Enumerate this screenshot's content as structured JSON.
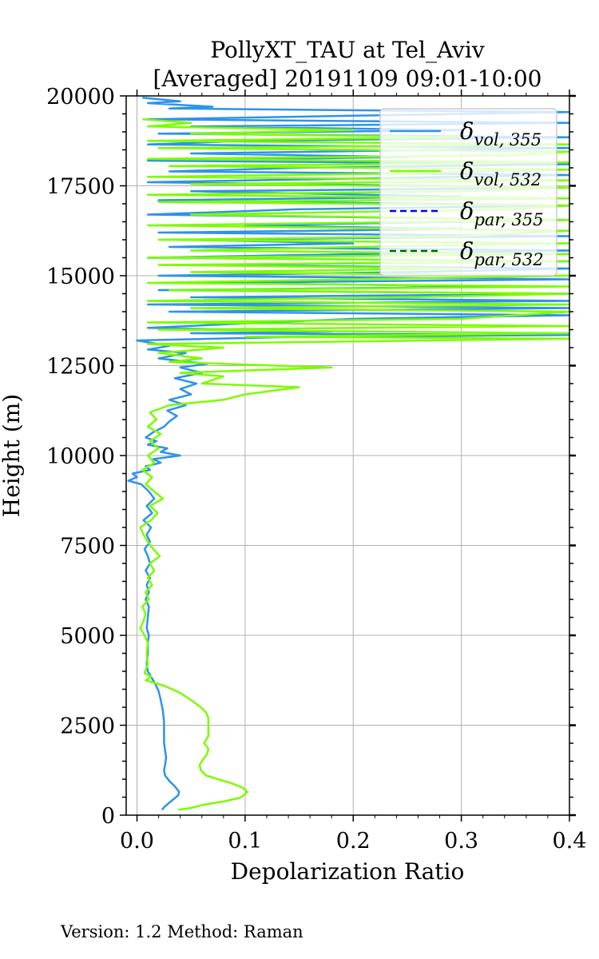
{
  "title_line1": "PollyXT_TAU at Tel_Aviv",
  "title_line2": "[Averaged] 20191109 09:01-10:00",
  "footer": "Version: 1.2  Method: Raman",
  "chart_data": {
    "type": "line",
    "xlabel": "Depolarization Ratio",
    "ylabel": "Height (m)",
    "xlim": [
      -0.01,
      0.4
    ],
    "ylim": [
      0,
      20000
    ],
    "xticks": [
      0.0,
      0.1,
      0.2,
      0.3,
      0.4
    ],
    "xtick_labels": [
      "0.0",
      "0.1",
      "0.2",
      "0.3",
      "0.4"
    ],
    "yticks": [
      0,
      2500,
      5000,
      7500,
      10000,
      12500,
      15000,
      17500,
      20000
    ],
    "ytick_labels": [
      "0",
      "2500",
      "5000",
      "7500",
      "10000",
      "12500",
      "15000",
      "17500",
      "20000"
    ],
    "grid": true,
    "legend_position": "top-right",
    "series": [
      {
        "name": "δvol,355",
        "label_main": "δ",
        "label_sub": "vol, 355",
        "color": "#2e93ea",
        "dash": "solid",
        "points": [
          [
            0.023,
            150
          ],
          [
            0.026,
            250
          ],
          [
            0.032,
            400
          ],
          [
            0.038,
            550
          ],
          [
            0.039,
            650
          ],
          [
            0.035,
            800
          ],
          [
            0.03,
            950
          ],
          [
            0.026,
            1100
          ],
          [
            0.025,
            1250
          ],
          [
            0.026,
            1400
          ],
          [
            0.027,
            1600
          ],
          [
            0.026,
            1800
          ],
          [
            0.025,
            2000
          ],
          [
            0.025,
            2300
          ],
          [
            0.025,
            2600
          ],
          [
            0.024,
            2900
          ],
          [
            0.022,
            3200
          ],
          [
            0.02,
            3450
          ],
          [
            0.017,
            3650
          ],
          [
            0.013,
            3850
          ],
          [
            0.01,
            4000
          ],
          [
            0.009,
            4200
          ],
          [
            0.01,
            4500
          ],
          [
            0.01,
            4800
          ],
          [
            0.011,
            5000
          ],
          [
            0.009,
            5200
          ],
          [
            0.01,
            5500
          ],
          [
            0.011,
            5800
          ],
          [
            0.008,
            6000
          ],
          [
            0.011,
            6200
          ],
          [
            0.009,
            6400
          ],
          [
            0.012,
            6600
          ],
          [
            0.008,
            6800
          ],
          [
            0.012,
            7000
          ],
          [
            0.01,
            7200
          ],
          [
            0.007,
            7400
          ],
          [
            0.012,
            7600
          ],
          [
            0.009,
            7800
          ],
          [
            0.013,
            8000
          ],
          [
            0.006,
            8200
          ],
          [
            0.014,
            8400
          ],
          [
            0.009,
            8600
          ],
          [
            0.016,
            8800
          ],
          [
            0.011,
            9000
          ],
          [
            0.004,
            9200
          ],
          [
            -0.008,
            9300
          ],
          [
            0.0,
            9400
          ],
          [
            -0.004,
            9500
          ],
          [
            0.012,
            9600
          ],
          [
            0.008,
            9700
          ],
          [
            0.022,
            9800
          ],
          [
            0.015,
            9900
          ],
          [
            0.04,
            10000
          ],
          [
            0.022,
            10100
          ],
          [
            0.028,
            10200
          ],
          [
            0.01,
            10300
          ],
          [
            0.018,
            10400
          ],
          [
            0.008,
            10500
          ],
          [
            0.015,
            10650
          ],
          [
            0.025,
            10800
          ],
          [
            0.03,
            10950
          ],
          [
            0.037,
            11100
          ],
          [
            0.028,
            11250
          ],
          [
            0.045,
            11400
          ],
          [
            0.03,
            11550
          ],
          [
            0.05,
            11700
          ],
          [
            0.04,
            11850
          ],
          [
            0.055,
            12000
          ],
          [
            0.035,
            12150
          ],
          [
            0.06,
            12300
          ],
          [
            0.04,
            12450
          ],
          [
            0.065,
            12550
          ],
          [
            0.02,
            12700
          ],
          [
            0.045,
            12850
          ],
          [
            0.01,
            12950
          ],
          [
            0.03,
            13050
          ],
          [
            0.0,
            13200
          ],
          [
            0.15,
            13300
          ],
          [
            0.4,
            13350
          ],
          [
            0.05,
            13400
          ],
          [
            0.18,
            13450
          ],
          [
            0.01,
            13550
          ],
          [
            0.12,
            13700
          ],
          [
            0.2,
            13800
          ],
          [
            0.4,
            13900
          ],
          [
            0.03,
            14000
          ],
          [
            0.4,
            14100
          ],
          [
            0.01,
            14200
          ],
          [
            0.4,
            14300
          ],
          [
            0.05,
            14400
          ],
          [
            0.4,
            14500
          ],
          [
            0.02,
            14600
          ],
          [
            0.35,
            14700
          ],
          [
            0.06,
            14800
          ],
          [
            0.4,
            14900
          ],
          [
            0.02,
            15000
          ],
          [
            0.25,
            15100
          ],
          [
            0.4,
            15200
          ],
          [
            0.05,
            15300
          ],
          [
            0.4,
            15400
          ],
          [
            0.01,
            15500
          ],
          [
            0.2,
            15600
          ],
          [
            0.4,
            15700
          ],
          [
            0.03,
            15800
          ],
          [
            0.2,
            15900
          ],
          [
            0.05,
            16000
          ],
          [
            0.4,
            16100
          ],
          [
            0.02,
            16200
          ],
          [
            0.3,
            16300
          ],
          [
            0.1,
            16400
          ],
          [
            0.4,
            16550
          ],
          [
            0.01,
            16700
          ],
          [
            0.15,
            16850
          ],
          [
            0.4,
            16950
          ],
          [
            0.02,
            17100
          ],
          [
            0.3,
            17200
          ],
          [
            0.05,
            17350
          ],
          [
            0.4,
            17450
          ],
          [
            0.01,
            17600
          ],
          [
            0.2,
            17700
          ],
          [
            0.4,
            17800
          ],
          [
            0.03,
            17900
          ],
          [
            0.15,
            18000
          ],
          [
            0.4,
            18100
          ],
          [
            0.01,
            18200
          ],
          [
            0.25,
            18300
          ],
          [
            0.05,
            18400
          ],
          [
            0.4,
            18550
          ],
          [
            0.01,
            18650
          ],
          [
            0.1,
            18750
          ],
          [
            0.4,
            18850
          ],
          [
            0.02,
            18950
          ],
          [
            0.3,
            19050
          ],
          [
            0.05,
            19150
          ],
          [
            0.4,
            19250
          ],
          [
            0.01,
            19350
          ],
          [
            0.2,
            19450
          ],
          [
            0.4,
            19550
          ],
          [
            0.03,
            19650
          ],
          [
            0.07,
            19700
          ],
          [
            0.01,
            19800
          ],
          [
            0.04,
            19850
          ],
          [
            0.005,
            19950
          ]
        ]
      },
      {
        "name": "δvol,532",
        "label_main": "δ",
        "label_sub": "vol, 532",
        "color": "#7cfc00",
        "dash": "solid",
        "points": [
          [
            0.038,
            150
          ],
          [
            0.05,
            200
          ],
          [
            0.06,
            280
          ],
          [
            0.08,
            380
          ],
          [
            0.095,
            480
          ],
          [
            0.1,
            580
          ],
          [
            0.102,
            650
          ],
          [
            0.098,
            760
          ],
          [
            0.088,
            880
          ],
          [
            0.075,
            1000
          ],
          [
            0.064,
            1100
          ],
          [
            0.059,
            1250
          ],
          [
            0.058,
            1400
          ],
          [
            0.061,
            1550
          ],
          [
            0.065,
            1700
          ],
          [
            0.066,
            1850
          ],
          [
            0.062,
            2000
          ],
          [
            0.066,
            2200
          ],
          [
            0.066,
            2500
          ],
          [
            0.066,
            2700
          ],
          [
            0.064,
            2850
          ],
          [
            0.059,
            3000
          ],
          [
            0.05,
            3200
          ],
          [
            0.04,
            3400
          ],
          [
            0.025,
            3600
          ],
          [
            0.008,
            3750
          ],
          [
            0.013,
            3850
          ],
          [
            0.007,
            3950
          ],
          [
            0.01,
            4200
          ],
          [
            0.009,
            4500
          ],
          [
            0.01,
            4800
          ],
          [
            0.007,
            5000
          ],
          [
            0.003,
            5200
          ],
          [
            0.006,
            5400
          ],
          [
            0.008,
            5600
          ],
          [
            0.005,
            5800
          ],
          [
            0.011,
            6000
          ],
          [
            0.008,
            6200
          ],
          [
            0.014,
            6400
          ],
          [
            0.01,
            6600
          ],
          [
            0.016,
            6800
          ],
          [
            0.012,
            7000
          ],
          [
            0.021,
            7200
          ],
          [
            0.015,
            7400
          ],
          [
            0.01,
            7600
          ],
          [
            0.006,
            7800
          ],
          [
            0.003,
            8000
          ],
          [
            0.013,
            8200
          ],
          [
            0.019,
            8400
          ],
          [
            0.012,
            8600
          ],
          [
            0.024,
            8800
          ],
          [
            0.016,
            9000
          ],
          [
            0.008,
            9200
          ],
          [
            0.014,
            9400
          ],
          [
            0.005,
            9600
          ],
          [
            0.016,
            9800
          ],
          [
            0.01,
            10000
          ],
          [
            0.02,
            10200
          ],
          [
            0.012,
            10400
          ],
          [
            0.022,
            10600
          ],
          [
            0.01,
            10800
          ],
          [
            0.018,
            11000
          ],
          [
            0.012,
            11200
          ],
          [
            0.03,
            11400
          ],
          [
            0.08,
            11550
          ],
          [
            0.1,
            11700
          ],
          [
            0.15,
            11900
          ],
          [
            0.06,
            12000
          ],
          [
            0.08,
            12200
          ],
          [
            0.04,
            12300
          ],
          [
            0.18,
            12450
          ],
          [
            0.03,
            12600
          ],
          [
            0.06,
            12700
          ],
          [
            0.02,
            12850
          ],
          [
            0.08,
            13000
          ],
          [
            0.01,
            13100
          ],
          [
            0.4,
            13250
          ],
          [
            0.1,
            13300
          ],
          [
            0.4,
            13400
          ],
          [
            0.02,
            13500
          ],
          [
            0.4,
            13600
          ],
          [
            0.01,
            13700
          ],
          [
            0.3,
            13800
          ],
          [
            0.4,
            14000
          ],
          [
            0.05,
            14100
          ],
          [
            0.4,
            14200
          ],
          [
            0.01,
            14300
          ],
          [
            0.25,
            14400
          ],
          [
            0.4,
            14500
          ],
          [
            0.03,
            14600
          ],
          [
            0.4,
            14700
          ],
          [
            0.01,
            14800
          ],
          [
            0.2,
            14900
          ],
          [
            0.4,
            15000
          ],
          [
            0.05,
            15100
          ],
          [
            0.3,
            15200
          ],
          [
            0.02,
            15300
          ],
          [
            0.4,
            15400
          ],
          [
            0.01,
            15500
          ],
          [
            0.4,
            15600
          ],
          [
            0.05,
            15700
          ],
          [
            0.2,
            15800
          ],
          [
            0.4,
            15900
          ],
          [
            0.02,
            16000
          ],
          [
            0.3,
            16100
          ],
          [
            0.4,
            16250
          ],
          [
            0.01,
            16400
          ],
          [
            0.4,
            16550
          ],
          [
            0.05,
            16700
          ],
          [
            0.35,
            16850
          ],
          [
            0.4,
            16950
          ],
          [
            0.02,
            17050
          ],
          [
            0.4,
            17150
          ],
          [
            0.01,
            17250
          ],
          [
            0.3,
            17350
          ],
          [
            0.4,
            17450
          ],
          [
            0.05,
            17550
          ],
          [
            0.4,
            17650
          ],
          [
            0.01,
            17750
          ],
          [
            0.25,
            17850
          ],
          [
            0.4,
            17950
          ],
          [
            0.03,
            18050
          ],
          [
            0.4,
            18150
          ],
          [
            0.01,
            18250
          ],
          [
            0.35,
            18350
          ],
          [
            0.4,
            18450
          ],
          [
            0.02,
            18550
          ],
          [
            0.4,
            18650
          ],
          [
            0.01,
            18750
          ],
          [
            0.3,
            18850
          ],
          [
            0.05,
            18950
          ],
          [
            0.2,
            19050
          ],
          [
            0.01,
            19150
          ],
          [
            0.05,
            19250
          ],
          [
            0.005,
            19350
          ]
        ]
      },
      {
        "name": "δpar,355",
        "label_main": "δ",
        "label_sub": "par, 355",
        "color": "#0000ff",
        "dash": "dashed",
        "points": []
      },
      {
        "name": "δpar,532",
        "label_main": "δ",
        "label_sub": "par, 532",
        "color": "#006400",
        "dash": "dashed",
        "points": []
      }
    ]
  }
}
